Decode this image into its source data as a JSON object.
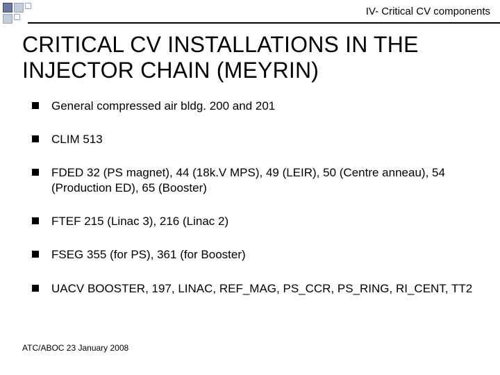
{
  "decor": {
    "squares": [
      {
        "fill": "#6b7aa1",
        "border": "#3b4a6b",
        "w": 14,
        "h": 14
      },
      {
        "fill": "#c4ccdb",
        "border": "#9aa6bf",
        "w": 14,
        "h": 14
      },
      {
        "fill": "#ffffff",
        "border": "#9aa6bf",
        "w": 9,
        "h": 9
      },
      {
        "fill": "#c4ccdb",
        "border": "#9aa6bf",
        "w": 14,
        "h": 14
      },
      {
        "fill": "#ffffff",
        "border": "#9aa6bf",
        "w": 9,
        "h": 9
      },
      {
        "fill": "#ffffff",
        "border": "#ffffff",
        "w": 0,
        "h": 0
      }
    ]
  },
  "header": {
    "section": "IV- Critical CV components"
  },
  "title": "CRITICAL CV INSTALLATIONS IN THE INJECTOR CHAIN (MEYRIN)",
  "bullets": [
    "General compressed air bldg. 200 and 201",
    "CLIM 513",
    "FDED 32 (PS magnet), 44 (18k.V MPS), 49 (LEIR), 50 (Centre anneau), 54 (Production ED), 65 (Booster)",
    "FTEF 215 (Linac 3), 216 (Linac 2)",
    "FSEG 355 (for PS), 361 (for Booster)",
    "UACV BOOSTER, 197, LINAC, REF_MAG, PS_CCR, PS_RING, RI_CENT, TT2"
  ],
  "footer": "ATC/ABOC 23 January 2008",
  "style": {
    "background_color": "#ffffff",
    "title_fontsize": 32,
    "bullet_fontsize": 17,
    "footer_fontsize": 12,
    "bullet_marker_color": "#000000",
    "header_line_color": "#000000"
  }
}
